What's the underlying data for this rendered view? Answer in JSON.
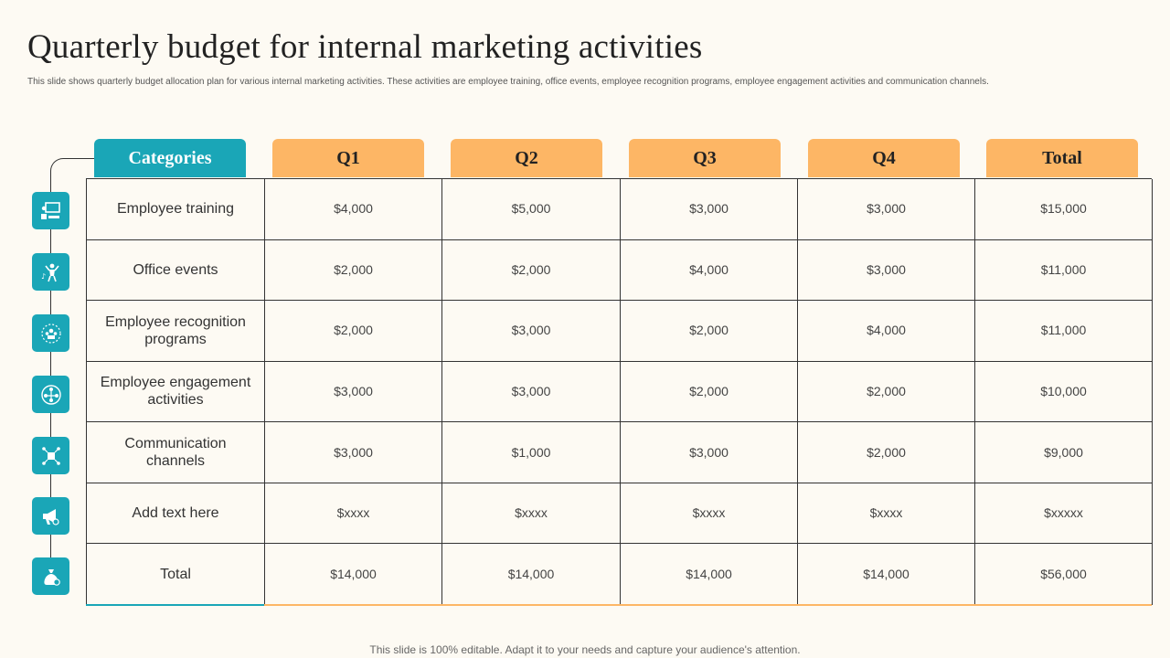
{
  "title": "Quarterly budget for internal marketing activities",
  "subtitle": "This slide shows quarterly budget allocation plan  for various internal marketing  activities. These activities are employee training, office events, employee recognition programs, employee engagement activities and communication channels.",
  "footer": "This slide is 100% editable. Adapt it to your needs and capture your audience's attention.",
  "headers": {
    "categories": "Categories",
    "q1": "Q1",
    "q2": "Q2",
    "q3": "Q3",
    "q4": "Q4",
    "total": "Total"
  },
  "rows": [
    {
      "category": "Employee training",
      "icon": "training-presentation-icon",
      "q1": "$4,000",
      "q2": "$5,000",
      "q3": "$3,000",
      "q4": "$3,000",
      "total": "$15,000"
    },
    {
      "category": "Office events",
      "icon": "event-celebration-icon",
      "q1": "$2,000",
      "q2": "$2,000",
      "q3": "$4,000",
      "q4": "$3,000",
      "total": "$11,000"
    },
    {
      "category": "Employee recognition programs",
      "icon": "recognition-team-icon",
      "q1": "$2,000",
      "q2": "$3,000",
      "q3": "$2,000",
      "q4": "$4,000",
      "total": "$11,000"
    },
    {
      "category": "Employee engagement activities",
      "icon": "engagement-network-icon",
      "q1": "$3,000",
      "q2": "$3,000",
      "q3": "$2,000",
      "q4": "$2,000",
      "total": "$10,000"
    },
    {
      "category": "Communication channels",
      "icon": "communication-channels-icon",
      "q1": "$3,000",
      "q2": "$1,000",
      "q3": "$3,000",
      "q4": "$2,000",
      "total": "$9,000"
    },
    {
      "category": "Add text here",
      "icon": "megaphone-icon",
      "q1": "$xxxx",
      "q2": "$xxxx",
      "q3": "$xxxx",
      "q4": "$xxxx",
      "total": "$xxxxx"
    },
    {
      "category": "Total",
      "icon": "money-bag-icon",
      "q1": "$14,000",
      "q2": "$14,000",
      "q3": "$14,000",
      "q4": "$14,000",
      "total": "$56,000"
    }
  ],
  "colors": {
    "accent_teal": "#1aa6b7",
    "accent_orange": "#fdb665",
    "background": "#fdfaf3"
  }
}
